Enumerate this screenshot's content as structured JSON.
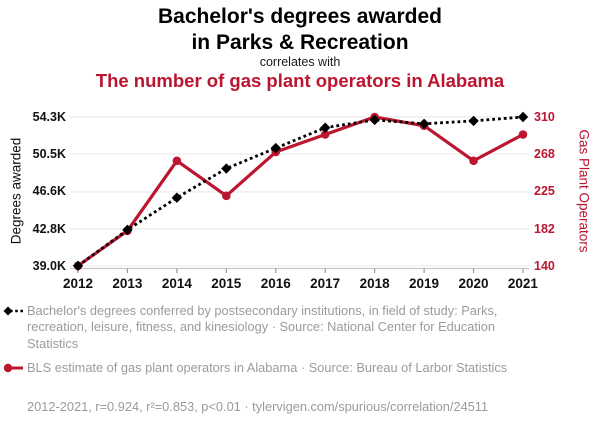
{
  "header": {
    "title_line1": "Bachelor's degrees awarded",
    "title_line2": "in Parks & Recreation",
    "connector": "correlates with",
    "subtitle": "The number of gas plant operators in Alabama"
  },
  "colors": {
    "red": "#bc1530",
    "black": "#000000",
    "grid": "#ebebeb",
    "axis_line": "#c9c9c9",
    "tick_mark": "#999999",
    "legend_text": "#9b9b9b"
  },
  "chart_data": {
    "type": "line",
    "x": [
      2012,
      2013,
      2014,
      2015,
      2016,
      2017,
      2018,
      2019,
      2020,
      2021
    ],
    "x_ticks": [
      "2012",
      "2013",
      "2014",
      "2015",
      "2016",
      "2017",
      "2018",
      "2019",
      "2020",
      "2021"
    ],
    "series": [
      {
        "name": "Bachelor's degrees awarded in Parks & Recreation",
        "axis": "left",
        "color": "#000000",
        "style": "dashed",
        "marker": "diamond",
        "values": [
          39000,
          42700,
          46000,
          49000,
          51100,
          53200,
          54000,
          53600,
          53900,
          54300
        ]
      },
      {
        "name": "Gas plant operators in Alabama",
        "axis": "right",
        "color": "#bc1530",
        "style": "solid",
        "marker": "circle",
        "values": [
          140,
          180,
          260,
          220,
          270,
          290,
          310,
          300,
          260,
          290
        ]
      }
    ],
    "left_axis": {
      "label": "Degrees awarded",
      "ticks": [
        "54.3K",
        "50.5K",
        "46.6K",
        "42.8K",
        "39.0K"
      ],
      "tick_values": [
        54300,
        50500,
        46600,
        42800,
        39000
      ],
      "range": [
        39000,
        54300
      ]
    },
    "right_axis": {
      "label": "Gas Plant Operators",
      "ticks": [
        "310",
        "268",
        "225",
        "182",
        "140"
      ],
      "tick_values": [
        310,
        268,
        225,
        182,
        140
      ],
      "range": [
        140,
        310
      ]
    },
    "grid": true,
    "legend_position": "bottom"
  },
  "legend": {
    "series1_label": "Bachelor's degrees conferred by postsecondary institutions, in field of study: Parks, recreation, leisure, fitness, and kinesiology · Source: National Center for Education Statistics",
    "series2_label": "BLS estimate of gas plant operators in Alabama · Source: Bureau of Larbor Statistics"
  },
  "footer": {
    "text": "2012-2021, r=0.924, r²=0.853, p<0.01 · tylervigen.com/spurious/correlation/24511"
  }
}
